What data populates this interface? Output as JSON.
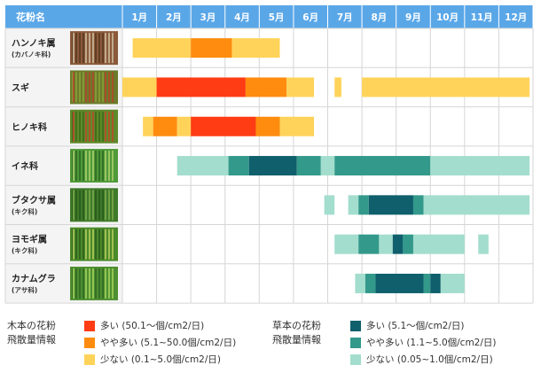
{
  "chart_data": {
    "type": "table",
    "header": {
      "name_col": "花粉名",
      "months": [
        "1月",
        "2月",
        "3月",
        "4月",
        "5月",
        "6月",
        "7月",
        "8月",
        "9月",
        "10月",
        "11月",
        "12月"
      ]
    },
    "rows": [
      {
        "name": "ハンノキ属",
        "sub": "(カバノキ科)",
        "photo": "alder-catkins-photo",
        "segments": [
          {
            "start": 1.3,
            "end": 3.0,
            "level": "low"
          },
          {
            "start": 3.0,
            "end": 4.2,
            "level": "medium"
          },
          {
            "start": 4.2,
            "end": 5.6,
            "level": "low"
          }
        ]
      },
      {
        "name": "スギ",
        "sub": "",
        "photo": "cedar-photo",
        "segments": [
          {
            "start": 1.0,
            "end": 2.0,
            "level": "low"
          },
          {
            "start": 2.0,
            "end": 4.6,
            "level": "high"
          },
          {
            "start": 4.6,
            "end": 5.8,
            "level": "medium"
          },
          {
            "start": 5.8,
            "end": 6.6,
            "level": "low"
          },
          {
            "start": 7.2,
            "end": 7.4,
            "level": "low"
          },
          {
            "start": 8.0,
            "end": 12.9,
            "level": "low"
          }
        ]
      },
      {
        "name": "ヒノキ科",
        "sub": "",
        "photo": "cypress-photo",
        "segments": [
          {
            "start": 1.6,
            "end": 1.9,
            "level": "low"
          },
          {
            "start": 1.9,
            "end": 2.6,
            "level": "medium"
          },
          {
            "start": 2.6,
            "end": 3.0,
            "level": "low"
          },
          {
            "start": 3.0,
            "end": 4.9,
            "level": "high"
          },
          {
            "start": 4.9,
            "end": 5.6,
            "level": "medium"
          },
          {
            "start": 5.6,
            "end": 6.6,
            "level": "low"
          }
        ]
      },
      {
        "name": "イネ科",
        "sub": "",
        "photo": "grass-photo",
        "segments": [
          {
            "start": 2.6,
            "end": 4.1,
            "level": "low"
          },
          {
            "start": 4.1,
            "end": 4.7,
            "level": "medium"
          },
          {
            "start": 4.7,
            "end": 6.1,
            "level": "high"
          },
          {
            "start": 6.1,
            "end": 6.8,
            "level": "medium"
          },
          {
            "start": 6.8,
            "end": 7.2,
            "level": "low"
          },
          {
            "start": 7.2,
            "end": 10.0,
            "level": "medium"
          },
          {
            "start": 10.0,
            "end": 12.9,
            "level": "low"
          }
        ]
      },
      {
        "name": "ブタクサ属",
        "sub": "(キク科)",
        "photo": "ragweed-photo",
        "segments": [
          {
            "start": 6.9,
            "end": 7.2,
            "level": "low"
          },
          {
            "start": 7.6,
            "end": 7.9,
            "level": "low"
          },
          {
            "start": 7.9,
            "end": 8.2,
            "level": "medium"
          },
          {
            "start": 8.2,
            "end": 9.5,
            "level": "high"
          },
          {
            "start": 9.5,
            "end": 9.8,
            "level": "medium"
          },
          {
            "start": 9.8,
            "end": 12.9,
            "level": "low"
          }
        ]
      },
      {
        "name": "ヨモギ属",
        "sub": "(キク科)",
        "photo": "mugwort-photo",
        "segments": [
          {
            "start": 7.2,
            "end": 7.9,
            "level": "low"
          },
          {
            "start": 7.9,
            "end": 8.5,
            "level": "medium"
          },
          {
            "start": 8.5,
            "end": 8.9,
            "level": "low"
          },
          {
            "start": 8.9,
            "end": 9.2,
            "level": "high"
          },
          {
            "start": 9.2,
            "end": 9.5,
            "level": "medium"
          },
          {
            "start": 9.5,
            "end": 11.0,
            "level": "low"
          },
          {
            "start": 11.4,
            "end": 11.7,
            "level": "low"
          }
        ]
      },
      {
        "name": "カナムグラ",
        "sub": "(アサ科)",
        "photo": "japanese-hop-photo",
        "segments": [
          {
            "start": 7.8,
            "end": 8.1,
            "level": "low"
          },
          {
            "start": 8.1,
            "end": 8.4,
            "level": "medium"
          },
          {
            "start": 8.4,
            "end": 9.8,
            "level": "high"
          },
          {
            "start": 9.8,
            "end": 10.0,
            "level": "medium"
          },
          {
            "start": 10.0,
            "end": 10.3,
            "level": "high"
          },
          {
            "start": 10.3,
            "end": 11.0,
            "level": "low"
          }
        ]
      }
    ]
  },
  "colors": {
    "header_bg": "#5aa7e8",
    "tree": {
      "high": "#ff3c14",
      "medium": "#ff8c0e",
      "low": "#ffd35a"
    },
    "grass": {
      "high": "#0f5f6c",
      "medium": "#33998b",
      "low": "#a3ddcd"
    },
    "grid": "#d6d6d6",
    "name_bg": "#f4f4f4"
  },
  "legend": {
    "tree": {
      "title": [
        "木本の花粉",
        "飛散量情報"
      ],
      "items": [
        {
          "level": "high",
          "label": "多い (50.1～個/cm2/日)"
        },
        {
          "level": "medium",
          "label": "やや多い (5.1~50.0個/cm2/日)"
        },
        {
          "level": "low",
          "label": "少ない (0.1~5.0個/cm2/日)"
        }
      ]
    },
    "grass": {
      "title": [
        "草本の花粉",
        "飛散量情報"
      ],
      "items": [
        {
          "level": "high",
          "label": "多い (5.1～個/cm2/日)"
        },
        {
          "level": "medium",
          "label": "やや多い (1.1~5.0個/cm2/日)"
        },
        {
          "level": "low",
          "label": "少ない (0.05~1.0個/cm2/日)"
        }
      ]
    }
  }
}
